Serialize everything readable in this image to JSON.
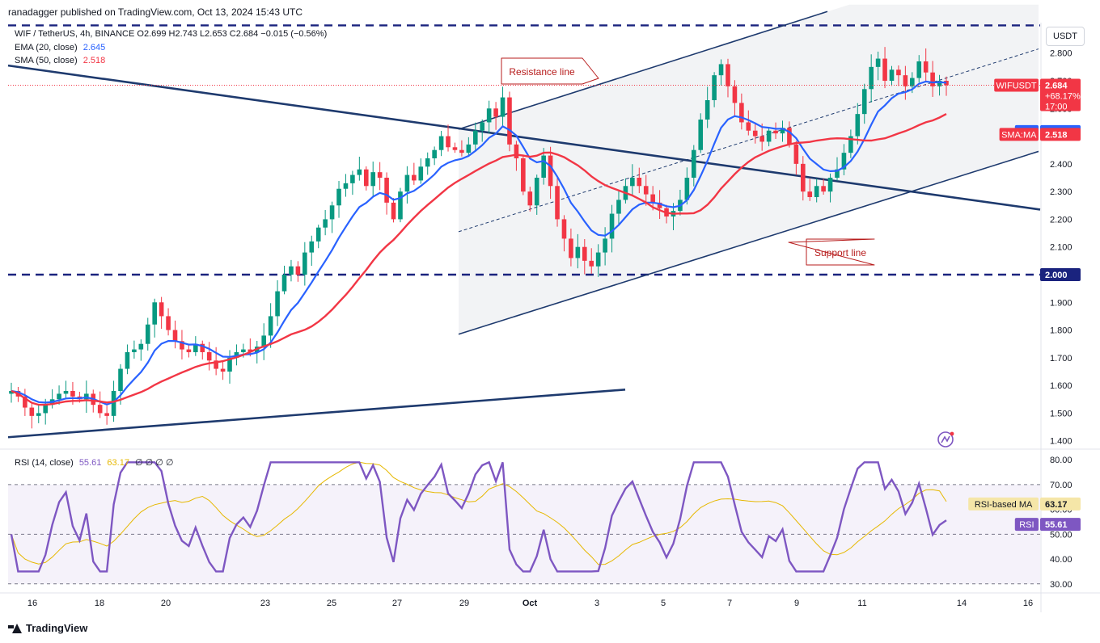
{
  "header": {
    "publisher": "ranadagger published on TradingView.com, Oct 13, 2024 15:43 UTC"
  },
  "legend": {
    "symbol_line": "WIF / TetherUS, 4h, BINANCE  O2.699  H2.743  L2.653  C2.684  −0.015 (−0.56%)",
    "ema_label": "EMA (20, close)",
    "ema_value": "2.645",
    "sma_label": "SMA (50, close)",
    "sma_value": "2.518",
    "rsi_label": "RSI (14, close)",
    "rsi_value": "55.61",
    "rsi_ma_value": "63.17",
    "rsi_extra": "∅ ∅ ∅ ∅"
  },
  "currency_button": "USDT",
  "annotations": {
    "resistance": "Resistance line",
    "support": "Support line"
  },
  "badges": {
    "symbol": "WIFUSDT",
    "price": "2.684",
    "change": "+68.17%",
    "countdown": "17:00",
    "ema": "EMA",
    "ema_value": "2.645",
    "sma": "SMA:MA",
    "sma_value": "2.518",
    "level": "2.000",
    "rsi_ma": "RSI-based MA",
    "rsi_ma_value": "63.17",
    "rsi": "RSI",
    "rsi_value": "55.61"
  },
  "footer": {
    "brand": "TradingView"
  },
  "colors": {
    "up": "#089981",
    "down": "#f23645",
    "ema": "#2962ff",
    "sma": "#f23645",
    "rsi": "#7e57c2",
    "trend": "#1e3a6e",
    "level": "#1a237e"
  },
  "chart_data": [
    {
      "type": "candlestick",
      "title": "WIF / TetherUS, 4h, BINANCE",
      "x_ticks": [
        "16",
        "18",
        "20",
        "23",
        "25",
        "27",
        "29",
        "Oct",
        "3",
        "5",
        "7",
        "9",
        "11",
        "14",
        "16"
      ],
      "y_ticks": [
        "1.400",
        "1.500",
        "1.600",
        "1.700",
        "1.800",
        "1.900",
        "2.000",
        "2.100",
        "2.200",
        "2.300",
        "2.400",
        "2.500",
        "2.600",
        "2.700",
        "2.800"
      ],
      "ylim": [
        1.37,
        2.91
      ],
      "horizontal_levels": [
        2.0,
        2.9
      ],
      "close_series": [
        1.58,
        1.56,
        1.52,
        1.49,
        1.5,
        1.53,
        1.55,
        1.57,
        1.58,
        1.56,
        1.55,
        1.57,
        1.53,
        1.5,
        1.49,
        1.58,
        1.66,
        1.72,
        1.73,
        1.75,
        1.82,
        1.9,
        1.85,
        1.8,
        1.76,
        1.73,
        1.72,
        1.75,
        1.72,
        1.69,
        1.66,
        1.65,
        1.7,
        1.72,
        1.73,
        1.72,
        1.74,
        1.78,
        1.85,
        1.94,
        2.0,
        2.03,
        2.0,
        2.08,
        2.12,
        2.17,
        2.2,
        2.25,
        2.31,
        2.33,
        2.36,
        2.38,
        2.32,
        2.37,
        2.35,
        2.26,
        2.2,
        2.3,
        2.36,
        2.34,
        2.39,
        2.42,
        2.45,
        2.5,
        2.46,
        2.45,
        2.44,
        2.47,
        2.52,
        2.55,
        2.6,
        2.57,
        2.64,
        2.47,
        2.42,
        2.3,
        2.25,
        2.35,
        2.43,
        2.32,
        2.2,
        2.13,
        2.06,
        2.1,
        2.05,
        2.03,
        2.08,
        2.13,
        2.22,
        2.27,
        2.32,
        2.35,
        2.32,
        2.29,
        2.26,
        2.24,
        2.21,
        2.23,
        2.27,
        2.35,
        2.45,
        2.56,
        2.63,
        2.72,
        2.76,
        2.68,
        2.62,
        2.55,
        2.52,
        2.5,
        2.48,
        2.52,
        2.51,
        2.53,
        2.47,
        2.4,
        2.3,
        2.28,
        2.32,
        2.3,
        2.35,
        2.38,
        2.44,
        2.5,
        2.58,
        2.67,
        2.75,
        2.78,
        2.7,
        2.74,
        2.72,
        2.68,
        2.71,
        2.77,
        2.73,
        2.68,
        2.7,
        2.684
      ],
      "ema_20": {
        "last": 2.645
      },
      "sma_50": {
        "last": 2.518
      },
      "annotations": [
        "Resistance line",
        "Support line"
      ]
    },
    {
      "type": "line",
      "title": "RSI (14, close)",
      "y_ticks": [
        "30.00",
        "40.00",
        "50.00",
        "60.00",
        "70.00",
        "80.00"
      ],
      "ylim": [
        27,
        83
      ],
      "bands": [
        30,
        70
      ],
      "last_rsi": 55.61,
      "last_rsi_ma": 63.17
    }
  ]
}
